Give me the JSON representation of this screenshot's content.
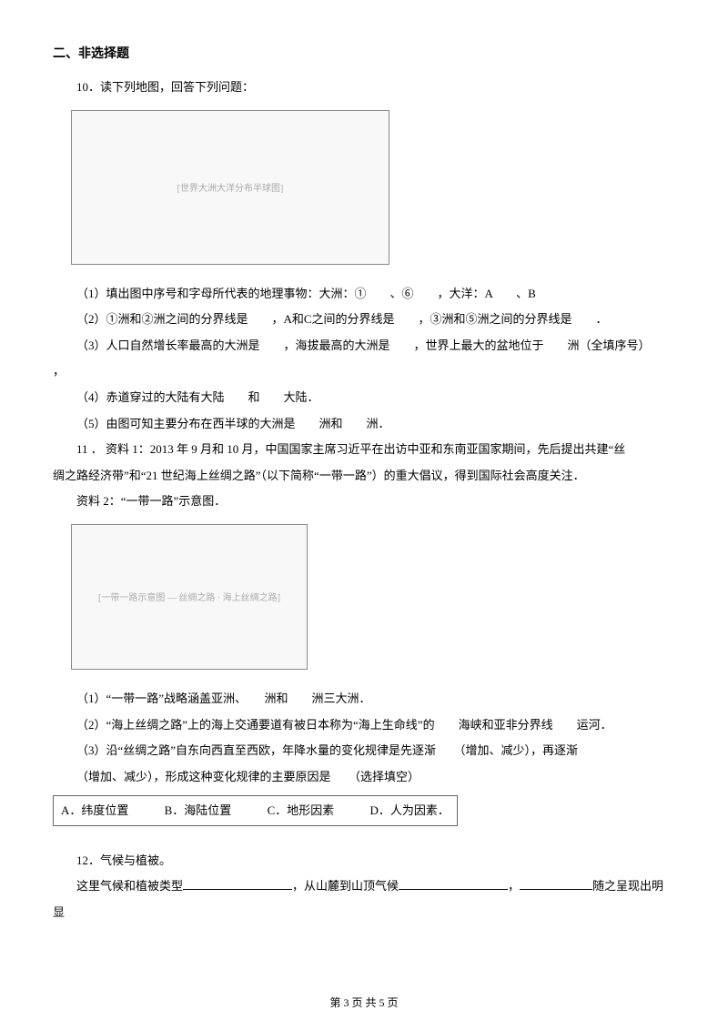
{
  "section": {
    "header": "二、非选择题"
  },
  "q10": {
    "intro": "10．读下列地图，回答下列问题：",
    "image_alt": "[世界大洲大洋分布半球图]",
    "p1": "（1）填出图中序号和字母所代表的地理事物：大洲：①　　、⑥　　，大洋：A　　、B　　",
    "p2": "（2）①洲和②洲之间的分界线是　　，A和C之间的分界线是　　，③洲和⑤洲之间的分界线是　　．",
    "p3": "（3）人口自然增长率最高的大洲是　　，海拔最高的大洲是　　，世界上最大的盆地位于　　洲（全填序号）",
    "p3b": "，",
    "p4": "（4）赤道穿过的大陆有大陆　　和　　大陆．",
    "p5": "（5）由图可知主要分布在西半球的大洲是　　洲和　　洲．"
  },
  "q11": {
    "intro_a": "11 ． 资料 1：2013 年 9 月和 10 月，中国国家主席习近平在出访中亚和东南亚国家期间，先后提出共建“丝",
    "intro_b": "绸之路经济带”和“21 世纪海上丝绸之路”（以下简称“一带一路”）的重大倡议，得到国际社会高度关注．",
    "mat2": "资料 2：“一带一路”示意图．",
    "image_alt": "[一带一路示意图 — 丝绸之路 · 海上丝绸之路]",
    "p1": "（1）“一带一路”战略涵盖亚洲、　　洲和　　洲三大洲．",
    "p2": "（2）“海上丝绸之路”上的海上交通要道有被日本称为“海上生命线”的　　海峡和亚非分界线　　运河．",
    "p3": "（3）沿“丝绸之路”自东向西直至西欧，年降水量的变化规律是先逐渐　　（增加、减少），再逐渐　　",
    "p3b": "（增加、减少），形成这种变化规律的主要原因是　　（选择填空）",
    "choices": {
      "a": "A．纬度位置",
      "b": "B．海陆位置",
      "c": "C．地形因素",
      "d": "D．人为因素．"
    }
  },
  "q12": {
    "intro": "12．气候与植被。",
    "line": {
      "pre": "这里气候和植被类型",
      "mid": "，从山麓到山顶气候",
      "mid2": "，",
      "post": "随之呈现出明显"
    }
  },
  "footer": "第 3 页 共 5 页"
}
